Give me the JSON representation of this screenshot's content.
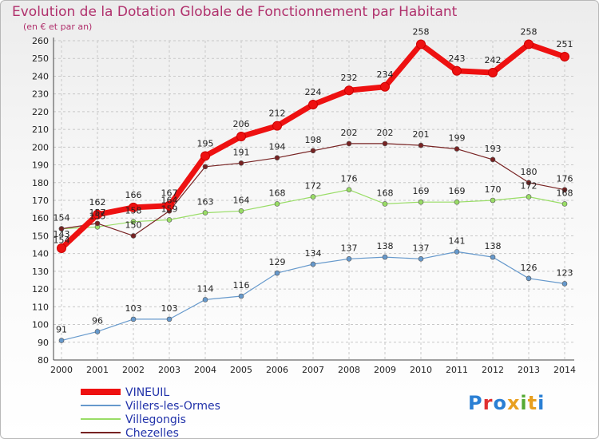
{
  "chart_data": {
    "type": "line",
    "title": "Evolution de la Dotation Globale de Fonctionnement par Habitant",
    "subtitle": "(en € et par an)",
    "x": [
      2000,
      2001,
      2002,
      2003,
      2004,
      2005,
      2006,
      2007,
      2008,
      2009,
      2010,
      2011,
      2012,
      2013,
      2014
    ],
    "ylim": [
      80,
      260
    ],
    "yticks": [
      80,
      90,
      100,
      110,
      120,
      130,
      140,
      150,
      160,
      170,
      180,
      190,
      200,
      210,
      220,
      230,
      240,
      250,
      260
    ],
    "grid": true,
    "legend_position": "bottom-left",
    "series": [
      {
        "name": "VINEUIL",
        "color": "#ee1111",
        "values": [
          143,
          162,
          166,
          167,
          195,
          206,
          212,
          224,
          232,
          234,
          258,
          243,
          242,
          258,
          251
        ]
      },
      {
        "name": "Villers-les-Ormes",
        "color": "#6699cc",
        "values": [
          91,
          96,
          103,
          103,
          114,
          116,
          129,
          134,
          137,
          138,
          137,
          141,
          138,
          126,
          123
        ]
      },
      {
        "name": "Villegongis",
        "color": "#99dd66",
        "values": [
          154,
          155,
          158,
          159,
          163,
          164,
          168,
          172,
          176,
          168,
          169,
          169,
          170,
          172,
          168
        ]
      },
      {
        "name": "Chezelles",
        "color": "#772222",
        "values": [
          154,
          157,
          150,
          164,
          189,
          191,
          194,
          198,
          202,
          202,
          201,
          199,
          193,
          180,
          176
        ]
      }
    ],
    "data_labels": {
      "VINEUIL": [
        "143",
        "162",
        "166",
        "167",
        "195",
        "206",
        "212",
        "224",
        "232",
        "234",
        "258",
        "243",
        "242",
        "258",
        "251"
      ],
      "Villers-les-Ormes": [
        "91",
        "96",
        "103",
        "103",
        "114",
        "116",
        "129",
        "134",
        "137",
        "138",
        "137",
        "141",
        "138",
        "126",
        "123"
      ],
      "Villegongis": [
        "154",
        "155",
        "158",
        "159",
        "163",
        "164",
        "168",
        "172",
        "176",
        "168",
        "169",
        "169",
        "170",
        "172",
        "168"
      ],
      "Chezelles": [
        "154",
        "157",
        "150",
        "164",
        "",
        "191",
        "194",
        "198",
        "202",
        "202",
        "201",
        "199",
        "193",
        "180",
        "176"
      ]
    }
  },
  "logo": {
    "letters": [
      "P",
      "r",
      "o",
      "x",
      "i",
      "t",
      "i"
    ],
    "colors": [
      "#2a7fd4",
      "#e03030",
      "#2a7fd4",
      "#e8a020",
      "#55aa33",
      "#e8a020",
      "#2a7fd4"
    ]
  }
}
